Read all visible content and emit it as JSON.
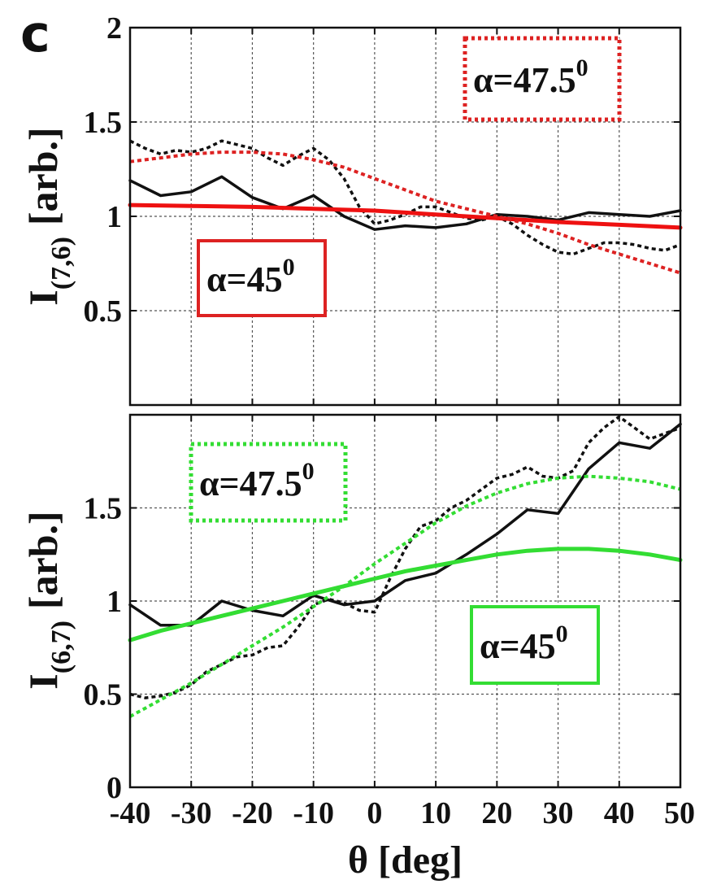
{
  "panel_label": "c",
  "chart_data": [
    {
      "type": "line",
      "title": "",
      "xlabel": "θ [deg]",
      "ylabel": {
        "base": "I",
        "sub": "(7,6)",
        "unit": "[arb.]"
      },
      "xlim": [
        -40,
        50
      ],
      "ylim": [
        0,
        2
      ],
      "xticks": [
        -40,
        -30,
        -20,
        -10,
        0,
        10,
        20,
        30,
        40,
        50
      ],
      "yticks": [
        0.5,
        1,
        1.5,
        2
      ],
      "ytick_labels": [
        "0.5",
        "1",
        "1.5",
        "2"
      ],
      "grid": true,
      "annotations": [
        {
          "text": "α=47.5",
          "sup": "0",
          "color": "#dd2222",
          "style": "dotted",
          "placement": "top-right"
        },
        {
          "text": "α=45",
          "sup": "0",
          "color": "#dd2222",
          "style": "solid",
          "placement": "middle-left"
        }
      ],
      "series": [
        {
          "color": "#111111",
          "style": "solid",
          "width": 3.5,
          "x": [
            -40,
            -35,
            -30,
            -25,
            -20,
            -15,
            -10,
            -5,
            0,
            5,
            10,
            15,
            20,
            25,
            30,
            35,
            40,
            45,
            50
          ],
          "values": [
            1.19,
            1.11,
            1.13,
            1.21,
            1.1,
            1.04,
            1.11,
            1.0,
            0.93,
            0.95,
            0.94,
            0.96,
            1.01,
            1.0,
            0.98,
            1.02,
            1.01,
            1.0,
            1.03
          ]
        },
        {
          "color": "#111111",
          "style": "dotted",
          "width": 3.5,
          "x": [
            -40,
            -37.5,
            -35,
            -32.5,
            -30,
            -27.5,
            -25,
            -22.5,
            -20,
            -17.5,
            -15,
            -12.5,
            -10,
            -7.5,
            -5,
            -2.5,
            0,
            2.5,
            5,
            7.5,
            10,
            12.5,
            15,
            17.5,
            20,
            22.5,
            25,
            27.5,
            30,
            32.5,
            35,
            37.5,
            40,
            42.5,
            45,
            47.5,
            50
          ],
          "values": [
            1.4,
            1.36,
            1.33,
            1.35,
            1.34,
            1.36,
            1.4,
            1.38,
            1.36,
            1.31,
            1.27,
            1.32,
            1.36,
            1.3,
            1.2,
            1.05,
            0.96,
            0.98,
            1.01,
            1.05,
            1.05,
            1.02,
            0.99,
            0.98,
            1.0,
            0.96,
            0.9,
            0.85,
            0.81,
            0.8,
            0.83,
            0.86,
            0.86,
            0.85,
            0.83,
            0.82,
            0.85
          ]
        },
        {
          "color": "#ee1111",
          "style": "solid",
          "width": 5,
          "x": [
            -40,
            -30,
            -20,
            -10,
            0,
            10,
            20,
            30,
            40,
            50
          ],
          "values": [
            1.06,
            1.055,
            1.05,
            1.04,
            1.03,
            1.01,
            0.99,
            0.97,
            0.955,
            0.94
          ]
        },
        {
          "color": "#dd2222",
          "style": "dotted",
          "width": 4,
          "x": [
            -40,
            -35,
            -30,
            -25,
            -20,
            -15,
            -10,
            -5,
            0,
            5,
            10,
            15,
            20,
            25,
            30,
            35,
            40,
            45,
            50
          ],
          "values": [
            1.29,
            1.31,
            1.33,
            1.34,
            1.34,
            1.33,
            1.3,
            1.26,
            1.2,
            1.14,
            1.08,
            1.04,
            1.0,
            0.96,
            0.91,
            0.85,
            0.8,
            0.75,
            0.7
          ]
        }
      ]
    },
    {
      "type": "line",
      "title": "",
      "xlabel": "θ [deg]",
      "ylabel": {
        "base": "I",
        "sub": "(6,7)",
        "unit": "[arb.]"
      },
      "xlim": [
        -40,
        50
      ],
      "ylim": [
        0,
        2
      ],
      "xticks": [
        -40,
        -30,
        -20,
        -10,
        0,
        10,
        20,
        30,
        40,
        50
      ],
      "xtick_labels": [
        "-40",
        "-30",
        "-20",
        "-10",
        "0",
        "10",
        "20",
        "30",
        "40",
        "50"
      ],
      "yticks": [
        0,
        0.5,
        1,
        1.5
      ],
      "ytick_labels": [
        "0",
        "0.5",
        "1",
        "1.5"
      ],
      "grid": true,
      "annotations": [
        {
          "text": "α=47.5",
          "sup": "0",
          "color": "#33dd33",
          "style": "dotted",
          "placement": "top-left"
        },
        {
          "text": "α=45",
          "sup": "0",
          "color": "#33dd33",
          "style": "solid",
          "placement": "middle-right"
        }
      ],
      "series": [
        {
          "color": "#111111",
          "style": "solid",
          "width": 3.5,
          "x": [
            -40,
            -35,
            -30,
            -25,
            -20,
            -15,
            -10,
            -5,
            0,
            5,
            10,
            15,
            20,
            25,
            30,
            35,
            40,
            45,
            50
          ],
          "values": [
            0.98,
            0.87,
            0.87,
            1.0,
            0.95,
            0.92,
            1.03,
            0.98,
            1.0,
            1.11,
            1.15,
            1.25,
            1.36,
            1.49,
            1.47,
            1.71,
            1.85,
            1.82,
            1.95
          ]
        },
        {
          "color": "#111111",
          "style": "dotted",
          "width": 3.5,
          "x": [
            -40,
            -37.5,
            -35,
            -32.5,
            -30,
            -27.5,
            -25,
            -22.5,
            -20,
            -17.5,
            -15,
            -12.5,
            -10,
            -7.5,
            -5,
            -2.5,
            0,
            2.5,
            5,
            7.5,
            10,
            12.5,
            15,
            17.5,
            20,
            22.5,
            25,
            27.5,
            30,
            32.5,
            35,
            37.5,
            40,
            42.5,
            45,
            47.5,
            50
          ],
          "values": [
            0.5,
            0.48,
            0.49,
            0.51,
            0.55,
            0.62,
            0.66,
            0.7,
            0.71,
            0.75,
            0.76,
            0.86,
            0.98,
            1.01,
            0.99,
            0.95,
            0.94,
            1.12,
            1.28,
            1.4,
            1.43,
            1.5,
            1.54,
            1.6,
            1.66,
            1.68,
            1.72,
            1.67,
            1.66,
            1.7,
            1.85,
            1.93,
            1.99,
            1.93,
            1.87,
            1.9,
            1.93
          ]
        },
        {
          "color": "#33dd33",
          "style": "solid",
          "width": 5,
          "x": [
            -40,
            -35,
            -30,
            -25,
            -20,
            -15,
            -10,
            -5,
            0,
            5,
            10,
            15,
            20,
            25,
            30,
            35,
            40,
            45,
            50
          ],
          "values": [
            0.79,
            0.84,
            0.88,
            0.92,
            0.96,
            1.0,
            1.04,
            1.08,
            1.12,
            1.16,
            1.19,
            1.22,
            1.25,
            1.27,
            1.28,
            1.28,
            1.27,
            1.25,
            1.22
          ]
        },
        {
          "color": "#33dd33",
          "style": "dotted",
          "width": 4,
          "x": [
            -40,
            -35,
            -30,
            -25,
            -20,
            -15,
            -10,
            -5,
            0,
            5,
            10,
            15,
            20,
            25,
            30,
            35,
            40,
            45,
            50
          ],
          "values": [
            0.38,
            0.47,
            0.56,
            0.66,
            0.76,
            0.86,
            0.97,
            1.08,
            1.2,
            1.31,
            1.42,
            1.51,
            1.58,
            1.63,
            1.66,
            1.67,
            1.66,
            1.64,
            1.6
          ]
        }
      ]
    }
  ]
}
